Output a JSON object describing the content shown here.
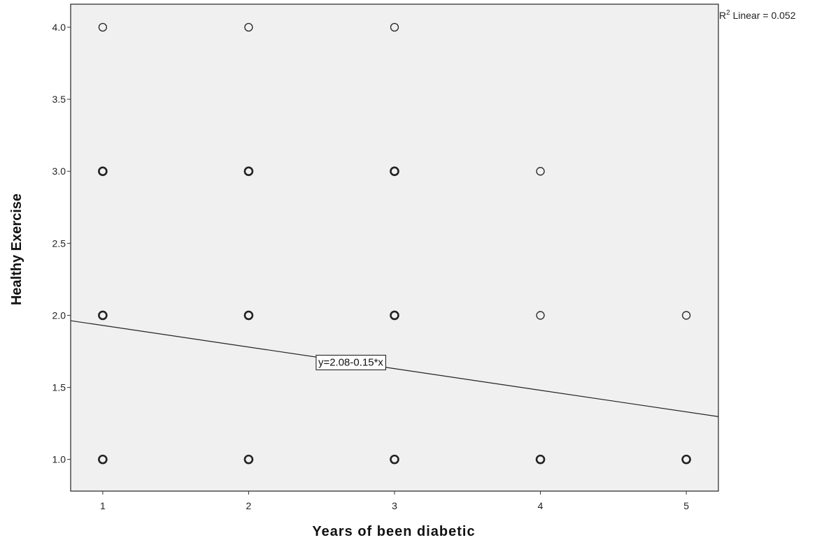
{
  "chart_data": {
    "type": "scatter",
    "xlabel": "Years of  been diabetic",
    "ylabel": "Healthy Exercise",
    "xlim": [
      0.78,
      5.22
    ],
    "ylim": [
      0.78,
      4.16
    ],
    "x_ticks": [
      "1",
      "2",
      "3",
      "4",
      "5"
    ],
    "y_ticks": [
      "1.0",
      "1.5",
      "2.0",
      "2.5",
      "3.0",
      "3.5",
      "4.0"
    ],
    "grid": false,
    "points": [
      {
        "x": 1,
        "y": 4,
        "multiple": false
      },
      {
        "x": 2,
        "y": 4,
        "multiple": false
      },
      {
        "x": 3,
        "y": 4,
        "multiple": false
      },
      {
        "x": 1,
        "y": 3,
        "multiple": true
      },
      {
        "x": 2,
        "y": 3,
        "multiple": true
      },
      {
        "x": 3,
        "y": 3,
        "multiple": true
      },
      {
        "x": 4,
        "y": 3,
        "multiple": false
      },
      {
        "x": 1,
        "y": 2,
        "multiple": true
      },
      {
        "x": 2,
        "y": 2,
        "multiple": true
      },
      {
        "x": 3,
        "y": 2,
        "multiple": true
      },
      {
        "x": 4,
        "y": 2,
        "multiple": false
      },
      {
        "x": 5,
        "y": 2,
        "multiple": false
      },
      {
        "x": 1,
        "y": 1,
        "multiple": true
      },
      {
        "x": 2,
        "y": 1,
        "multiple": true
      },
      {
        "x": 3,
        "y": 1,
        "multiple": true
      },
      {
        "x": 4,
        "y": 1,
        "multiple": true
      },
      {
        "x": 5,
        "y": 1,
        "multiple": true
      }
    ],
    "fit_line": {
      "intercept": 2.08,
      "slope": -0.15,
      "label": "y=2.08-0.15*x",
      "label_x": 2.7
    },
    "r2_label": {
      "prefix": "R",
      "superscript": "2",
      "suffix": " Linear = 0.052"
    },
    "colors": {
      "plot_background": "#f0f0f0",
      "frame": "#333333",
      "marker": "#222222",
      "fit_line": "#222222"
    }
  }
}
